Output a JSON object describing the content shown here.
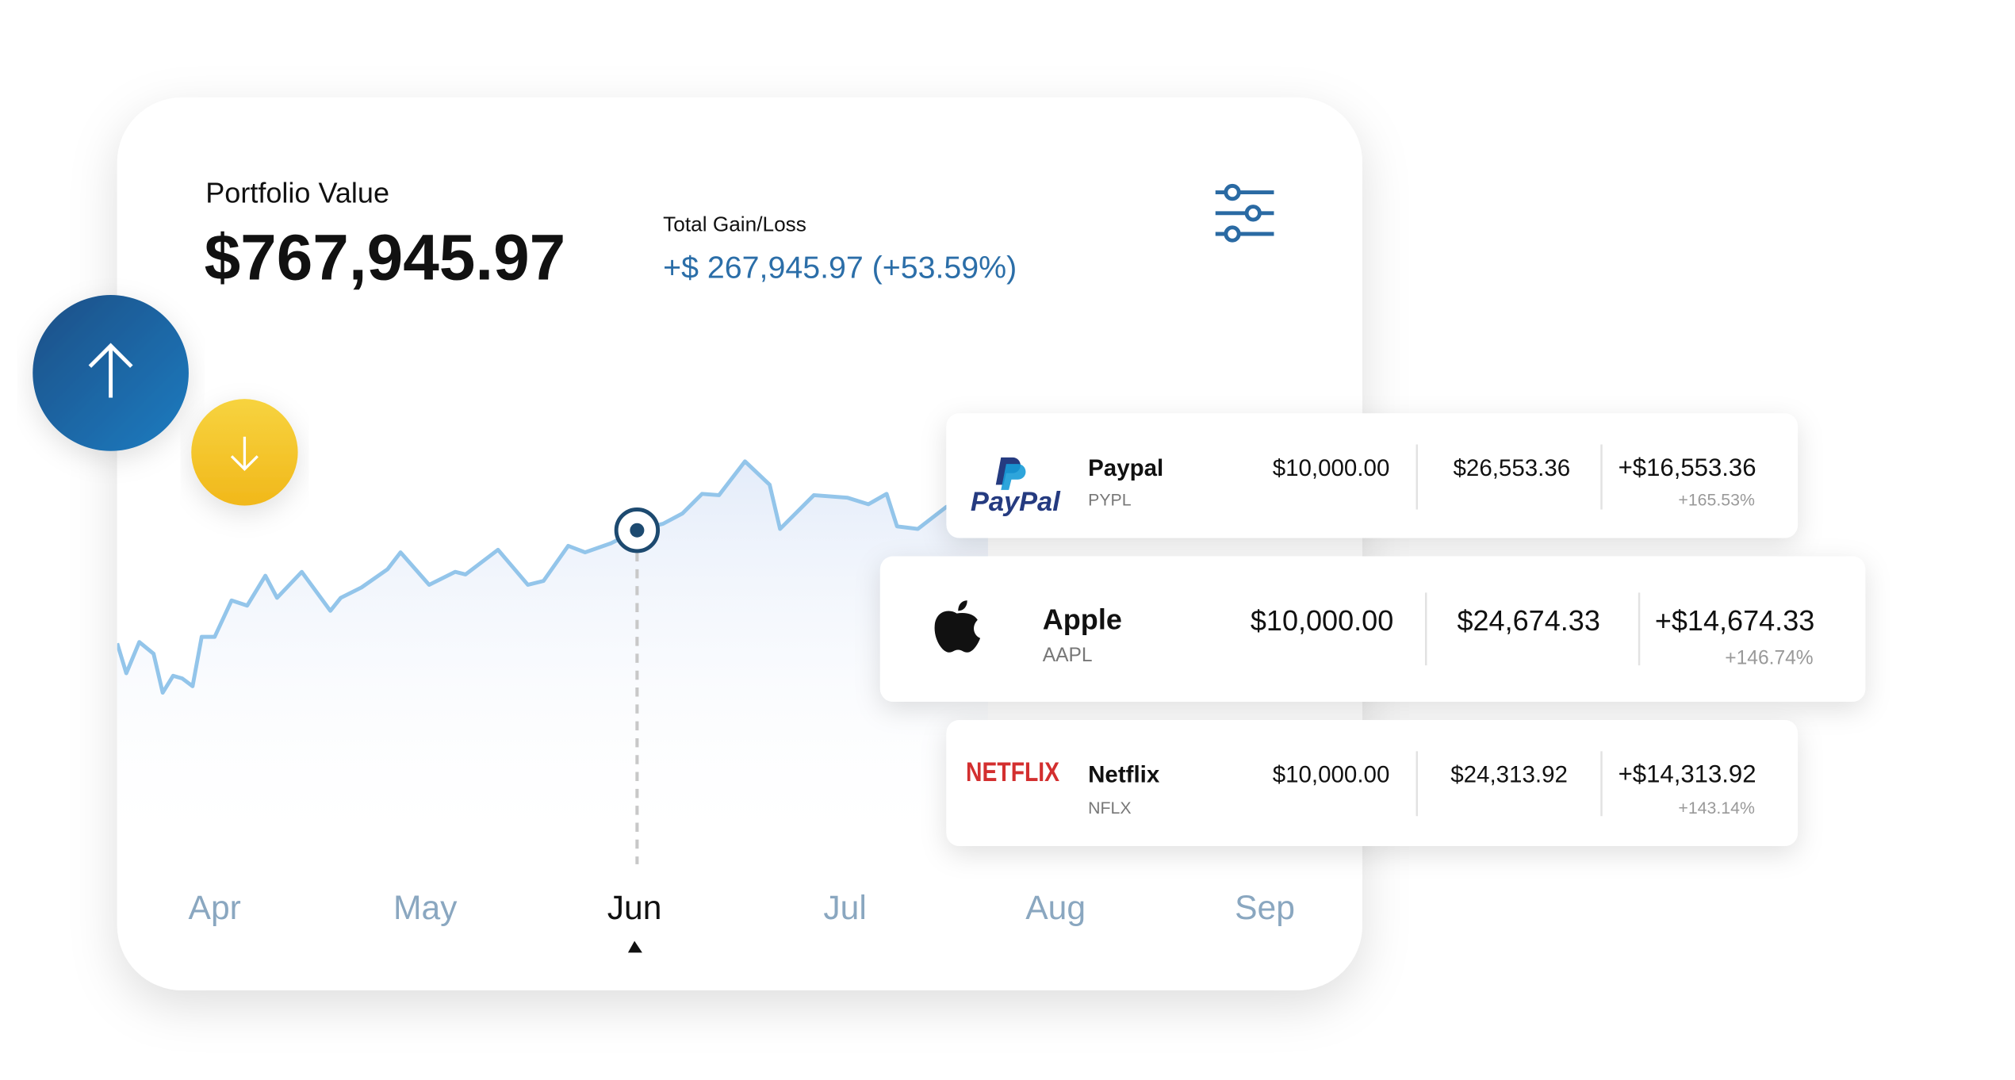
{
  "portfolio": {
    "label": "Portfolio Value",
    "value": "$767,945.97"
  },
  "gain": {
    "label": "Total Gain/Loss",
    "value": "+$ 267,945.97 (+53.59%)"
  },
  "months": [
    "Apr",
    "May",
    "Jun",
    "Jul",
    "Aug",
    "Sep"
  ],
  "holdings": [
    {
      "logo_text": "PayPal",
      "name": "Paypal",
      "ticker": "PYPL",
      "invested": "$10,000.00",
      "current": "$26,553.36",
      "gain": "+$16,553.36",
      "gain_pct": "+165.53%"
    },
    {
      "name": "Apple",
      "ticker": "AAPL",
      "invested": "$10,000.00",
      "current": "$24,674.33",
      "gain": "+$14,674.33",
      "gain_pct": "+146.74%"
    },
    {
      "logo_text": "NETFLIX",
      "name": "Netflix",
      "ticker": "NFLX",
      "invested": "$10,000.00",
      "current": "$24,313.92",
      "gain": "+$14,313.92",
      "gain_pct": "+143.14%"
    }
  ]
}
